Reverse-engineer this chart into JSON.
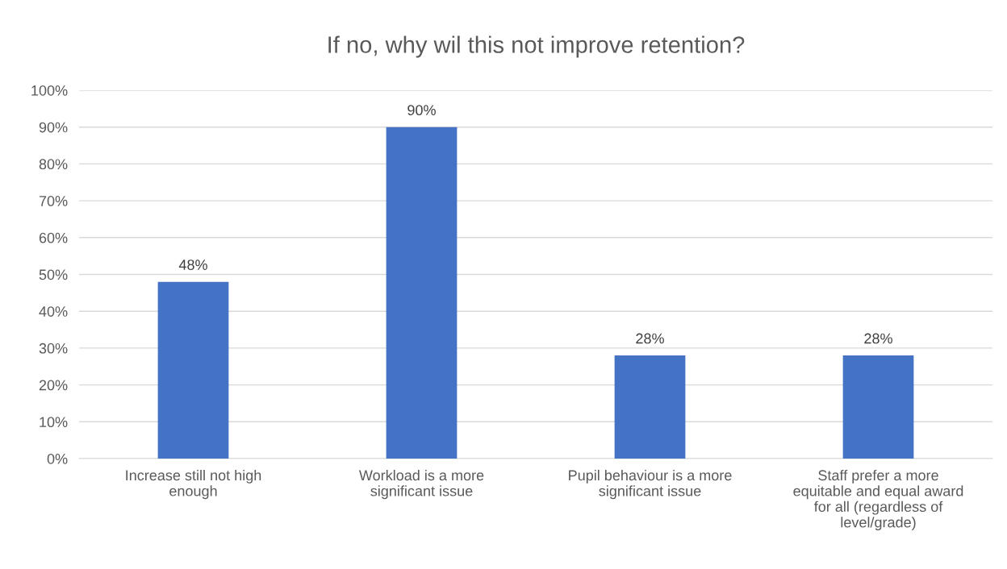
{
  "chart_data": {
    "type": "bar",
    "title": "If no, why wil this not improve retention?",
    "categories": [
      "Increase still not high\nenough",
      "Workload is a more\nsignificant issue",
      "Pupil behaviour is a more\nsignificant issue",
      "Staff prefer a more\nequitable and equal award\nfor all (regardless of\nlevel/grade)"
    ],
    "values": [
      48,
      90,
      28,
      28
    ],
    "value_labels": [
      "48%",
      "90%",
      "28%",
      "28%"
    ],
    "color": "#4472c4",
    "ylim": [
      0,
      100
    ],
    "yticks": [
      {
        "value": 0,
        "label": "0%"
      },
      {
        "value": 10,
        "label": "10%"
      },
      {
        "value": 20,
        "label": "20%"
      },
      {
        "value": 30,
        "label": "30%"
      },
      {
        "value": 40,
        "label": "40%"
      },
      {
        "value": 50,
        "label": "50%"
      },
      {
        "value": 60,
        "label": "60%"
      },
      {
        "value": 70,
        "label": "70%"
      },
      {
        "value": 80,
        "label": "80%"
      },
      {
        "value": 90,
        "label": "90%"
      },
      {
        "value": 100,
        "label": "100%"
      }
    ],
    "grid": "y",
    "legend": false
  }
}
